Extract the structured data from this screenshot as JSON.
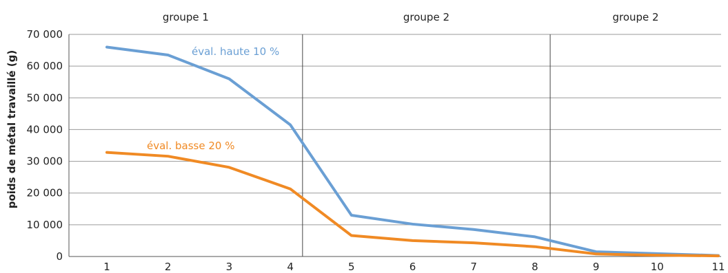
{
  "chart_data": {
    "type": "line",
    "title": "",
    "xlabel": "",
    "ylabel": "poids de métal travaillé (g)",
    "x": [
      1,
      2,
      3,
      4,
      5,
      6,
      7,
      8,
      9,
      10,
      11
    ],
    "x_tick_labels": [
      "1",
      "2",
      "3",
      "4",
      "5",
      "6",
      "7",
      "8",
      "9",
      "10",
      "11"
    ],
    "ylim": [
      0,
      70000
    ],
    "y_ticks": [
      0,
      10000,
      20000,
      30000,
      40000,
      50000,
      60000,
      70000
    ],
    "y_tick_labels": [
      "0",
      "10 000",
      "20 000",
      "30 000",
      "40 000",
      "50 000",
      "60 000",
      "70 000"
    ],
    "grid": true,
    "groups": [
      {
        "label": "groupe 1",
        "from": 1,
        "to": 4.2
      },
      {
        "label": "groupe 2",
        "from": 4.2,
        "to": 8.25
      },
      {
        "label": "groupe 2",
        "from": 8.25,
        "to": 11
      }
    ],
    "group_separators": [
      4.2,
      8.25
    ],
    "series": [
      {
        "name": "éval. haute 10 %",
        "color": "#6a9fd4",
        "values": [
          66000,
          63500,
          56000,
          41500,
          13000,
          10200,
          8500,
          6200,
          1500,
          900,
          300
        ]
      },
      {
        "name": "éval. basse 20 %",
        "color": "#f08a24",
        "values": [
          32800,
          31600,
          28100,
          21300,
          6600,
          5000,
          4300,
          3100,
          800,
          400,
          200
        ]
      }
    ]
  }
}
